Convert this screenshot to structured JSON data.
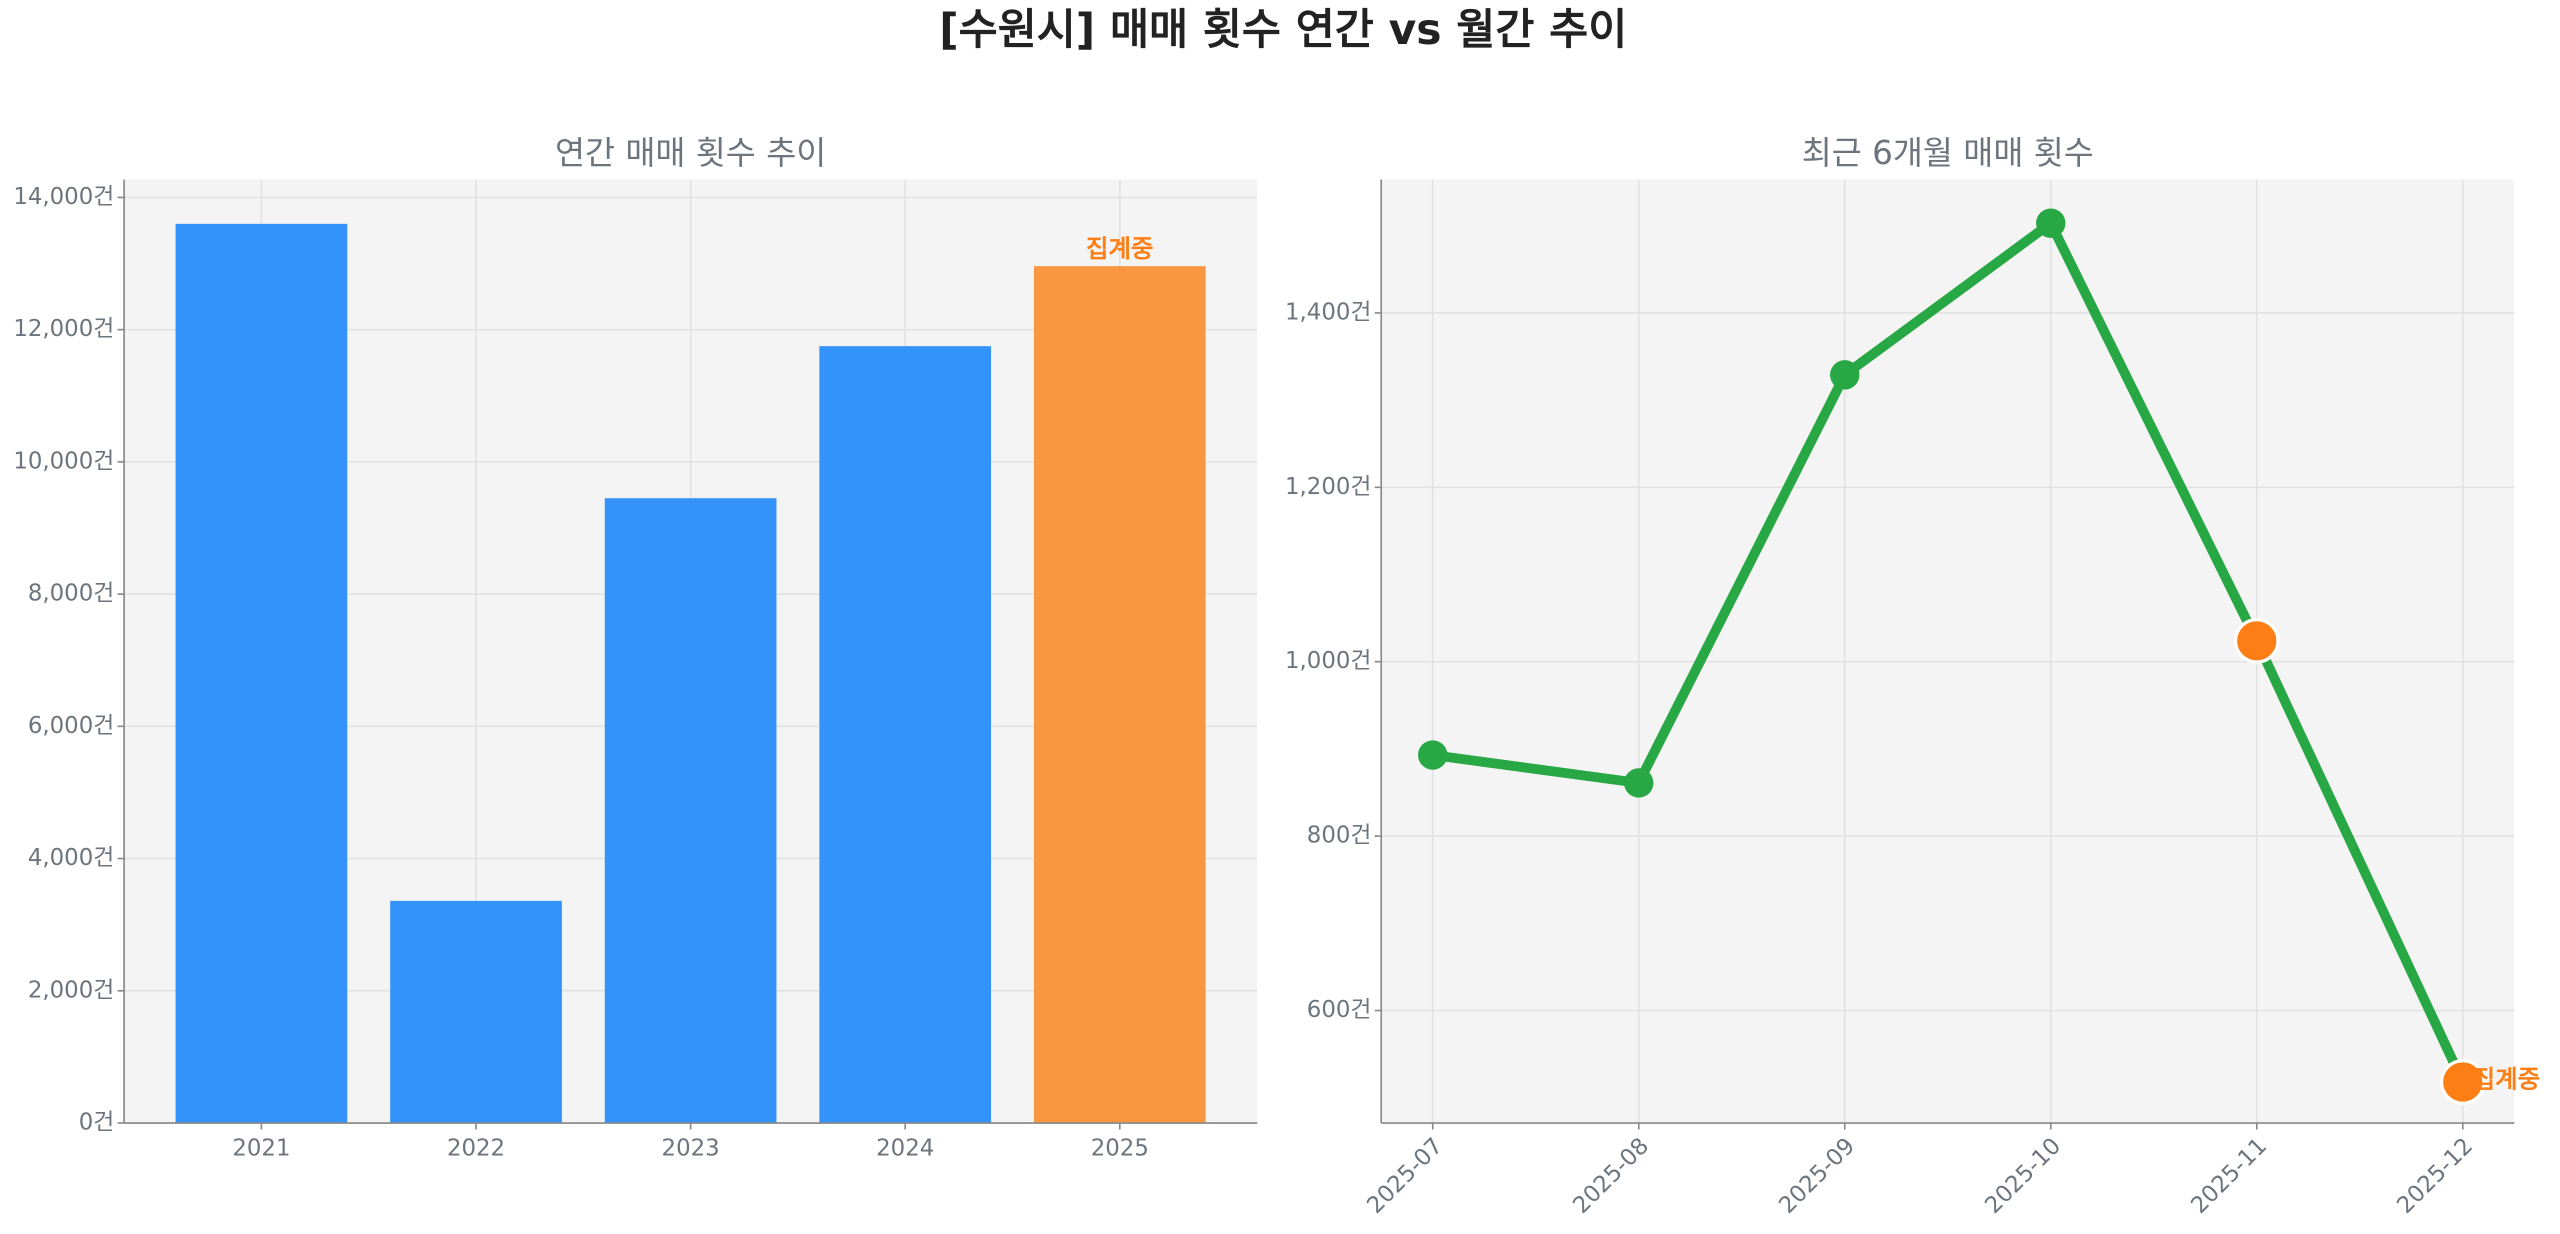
{
  "title": "[수원시] 매매 횟수 연간 vs 월간 추이",
  "chart_data": [
    {
      "type": "bar",
      "title": "연간 매매 횟수 추이",
      "categories": [
        "2021",
        "2022",
        "2023",
        "2024",
        "2025"
      ],
      "values": [
        13600,
        3360,
        9450,
        11750,
        12960
      ],
      "colors": [
        "#3393fb",
        "#3393fb",
        "#3393fb",
        "#3393fb",
        "#f99640"
      ],
      "annotation": {
        "text": "집계중",
        "at": "2025",
        "color": "#fd7e14"
      },
      "ylim": [
        0,
        14270
      ],
      "yticks": [
        {
          "value": 0,
          "label": "0건"
        },
        {
          "value": 2000,
          "label": "2,000건"
        },
        {
          "value": 4000,
          "label": "4,000건"
        },
        {
          "value": 6000,
          "label": "6,000건"
        },
        {
          "value": 8000,
          "label": "8,000건"
        },
        {
          "value": 10000,
          "label": "10,000건"
        },
        {
          "value": 12000,
          "label": "12,000건"
        },
        {
          "value": 14000,
          "label": "14,000건"
        }
      ],
      "grid": true
    },
    {
      "type": "line",
      "title": "최근 6개월 매매 횟수",
      "categories": [
        "2025-07",
        "2025-08",
        "2025-09",
        "2025-10",
        "2025-11",
        "2025-12"
      ],
      "values": [
        893,
        861,
        1329,
        1503,
        1024,
        518
      ],
      "color": "#28a745",
      "marker_colors": [
        "#28a745",
        "#28a745",
        "#28a745",
        "#28a745",
        "#fd7e14",
        "#fd7e14"
      ],
      "annotation": {
        "text": "집계중",
        "at": "2025-12",
        "color": "#fd7e14"
      },
      "ylim": [
        471,
        1553
      ],
      "yticks": [
        {
          "value": 600,
          "label": "600건"
        },
        {
          "value": 800,
          "label": "800건"
        },
        {
          "value": 1000,
          "label": "1,000건"
        },
        {
          "value": 1200,
          "label": "1,200건"
        },
        {
          "value": 1400,
          "label": "1,400건"
        }
      ],
      "grid": true
    }
  ]
}
